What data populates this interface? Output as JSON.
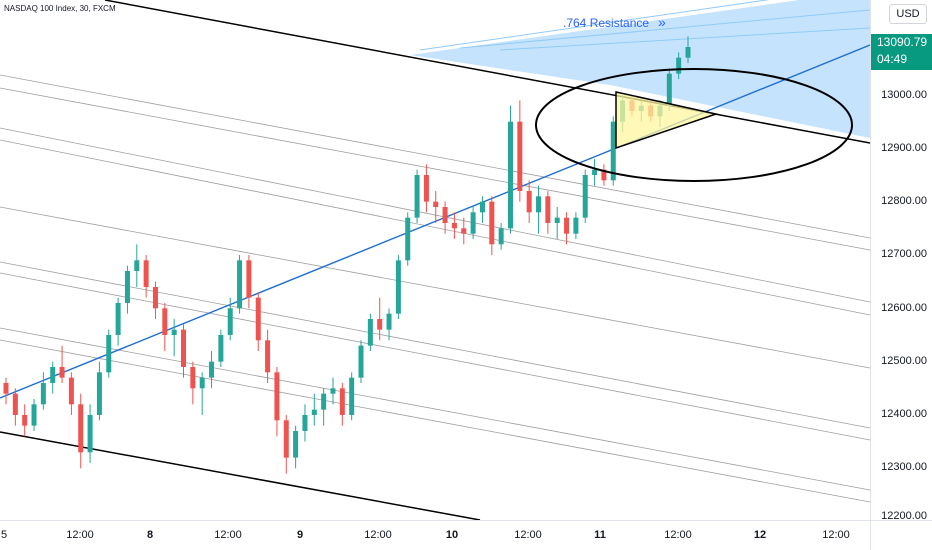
{
  "header": {
    "symbol": "NASDAQ 100 Index, 30, FXCM",
    "currency": "USD"
  },
  "price_axis": {
    "ticks": [
      "13000.00",
      "12900.00",
      "12800.00",
      "12700.00",
      "12600.00",
      "12500.00",
      "12400.00",
      "12300.00",
      "12200.00"
    ],
    "last_price": "13090.79",
    "countdown": "04:49",
    "last_color": "#089981"
  },
  "time_axis": {
    "ticks": [
      {
        "label": "5",
        "bold": false
      },
      {
        "label": "12:00",
        "bold": false
      },
      {
        "label": "8",
        "bold": true
      },
      {
        "label": "12:00",
        "bold": false
      },
      {
        "label": "9",
        "bold": true
      },
      {
        "label": "12:00",
        "bold": false
      },
      {
        "label": "10",
        "bold": true
      },
      {
        "label": "12:00",
        "bold": false
      },
      {
        "label": "11",
        "bold": true
      },
      {
        "label": "12:00",
        "bold": false
      },
      {
        "label": "12",
        "bold": true
      },
      {
        "label": "12:00",
        "bold": false
      }
    ]
  },
  "annotations": {
    "resistance_label": ".764 Resistance",
    "resistance_icon": "double-chevron-right-icon"
  },
  "colors": {
    "up": "#26a69a",
    "down": "#ef5350",
    "trend": "#1e6fd1",
    "zone": "#bbdefb",
    "triangle": "#fff59d"
  },
  "chart_data": {
    "type": "candlestick",
    "title": "NASDAQ 100 Index, 30, FXCM",
    "ylim": [
      12200,
      13200
    ],
    "candles": [
      [
        12460,
        12470,
        12420,
        12440
      ],
      [
        12440,
        12450,
        12380,
        12400
      ],
      [
        12400,
        12420,
        12360,
        12380
      ],
      [
        12380,
        12430,
        12370,
        12420
      ],
      [
        12420,
        12480,
        12410,
        12460
      ],
      [
        12460,
        12500,
        12440,
        12490
      ],
      [
        12490,
        12530,
        12460,
        12470
      ],
      [
        12470,
        12480,
        12400,
        12420
      ],
      [
        12420,
        12440,
        12300,
        12330
      ],
      [
        12330,
        12420,
        12310,
        12400
      ],
      [
        12400,
        12500,
        12390,
        12480
      ],
      [
        12480,
        12560,
        12470,
        12550
      ],
      [
        12550,
        12620,
        12530,
        12610
      ],
      [
        12610,
        12680,
        12590,
        12670
      ],
      [
        12670,
        12720,
        12640,
        12690
      ],
      [
        12690,
        12700,
        12620,
        12640
      ],
      [
        12640,
        12650,
        12580,
        12600
      ],
      [
        12600,
        12610,
        12520,
        12550
      ],
      [
        12550,
        12580,
        12510,
        12560
      ],
      [
        12560,
        12570,
        12470,
        12490
      ],
      [
        12490,
        12500,
        12420,
        12450
      ],
      [
        12450,
        12480,
        12400,
        12470
      ],
      [
        12470,
        12520,
        12450,
        12500
      ],
      [
        12500,
        12560,
        12490,
        12550
      ],
      [
        12550,
        12620,
        12540,
        12600
      ],
      [
        12600,
        12700,
        12590,
        12690
      ],
      [
        12690,
        12700,
        12600,
        12620
      ],
      [
        12620,
        12630,
        12520,
        12540
      ],
      [
        12540,
        12560,
        12460,
        12480
      ],
      [
        12480,
        12490,
        12360,
        12390
      ],
      [
        12390,
        12400,
        12290,
        12320
      ],
      [
        12320,
        12380,
        12300,
        12370
      ],
      [
        12370,
        12420,
        12350,
        12400
      ],
      [
        12400,
        12440,
        12380,
        12410
      ],
      [
        12410,
        12450,
        12380,
        12440
      ],
      [
        12440,
        12470,
        12420,
        12450
      ],
      [
        12450,
        12460,
        12380,
        12400
      ],
      [
        12400,
        12480,
        12390,
        12470
      ],
      [
        12470,
        12540,
        12460,
        12530
      ],
      [
        12530,
        12590,
        12520,
        12580
      ],
      [
        12580,
        12620,
        12540,
        12560
      ],
      [
        12560,
        12600,
        12540,
        12590
      ],
      [
        12590,
        12700,
        12580,
        12690
      ],
      [
        12690,
        12780,
        12680,
        12770
      ],
      [
        12770,
        12860,
        12760,
        12850
      ],
      [
        12850,
        12870,
        12780,
        12800
      ],
      [
        12800,
        12820,
        12760,
        12790
      ],
      [
        12790,
        12800,
        12740,
        12760
      ],
      [
        12760,
        12780,
        12730,
        12750
      ],
      [
        12750,
        12770,
        12720,
        12740
      ],
      [
        12740,
        12790,
        12730,
        12780
      ],
      [
        12780,
        12810,
        12760,
        12800
      ],
      [
        12800,
        12810,
        12700,
        12720
      ],
      [
        12720,
        12760,
        12710,
        12750
      ],
      [
        12750,
        12980,
        12740,
        12950
      ],
      [
        12950,
        12990,
        12800,
        12820
      ],
      [
        12820,
        12840,
        12760,
        12780
      ],
      [
        12780,
        12830,
        12740,
        12810
      ],
      [
        12810,
        12820,
        12740,
        12760
      ],
      [
        12760,
        12790,
        12730,
        12770
      ],
      [
        12770,
        12780,
        12720,
        12740
      ],
      [
        12740,
        12780,
        12730,
        12770
      ],
      [
        12770,
        12860,
        12760,
        12850
      ],
      [
        12850,
        12880,
        12830,
        12860
      ],
      [
        12860,
        12870,
        12830,
        12840
      ],
      [
        12840,
        12960,
        12830,
        12950
      ],
      [
        12950,
        13000,
        12930,
        12990
      ],
      [
        12990,
        13000,
        12960,
        12970
      ],
      [
        12970,
        12990,
        12950,
        12980
      ],
      [
        12980,
        12990,
        12950,
        12960
      ],
      [
        12960,
        12990,
        12940,
        12980
      ],
      [
        12980,
        13050,
        12970,
        13040
      ],
      [
        13040,
        13080,
        13030,
        13070
      ],
      [
        13070,
        13110,
        13060,
        13090
      ]
    ]
  }
}
